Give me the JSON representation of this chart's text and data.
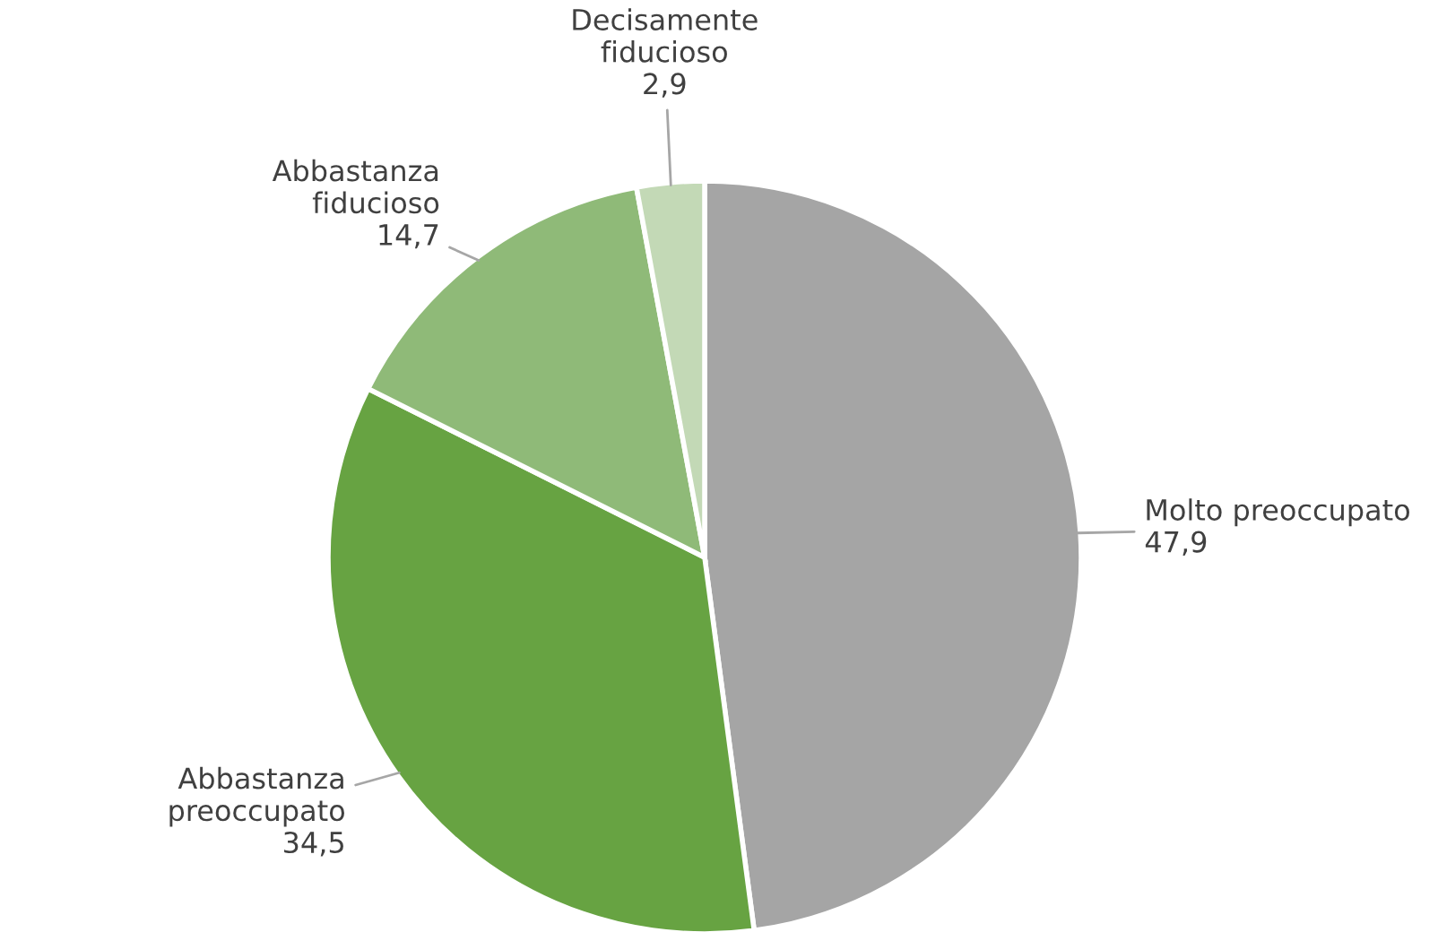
{
  "chart_data": {
    "type": "pie",
    "categories": [
      "Molto preoccupato",
      "Abbastanza\npreoccupato",
      "Abbastanza\nfiducioso",
      "Decisamente\nfiducioso"
    ],
    "values": [
      47.9,
      34.5,
      14.7,
      2.9
    ],
    "colors": [
      "#a5a5a5",
      "#67a342",
      "#8fba78",
      "#c3d9b6"
    ],
    "value_labels": [
      "47,9",
      "34,5",
      "14,7",
      "2,9"
    ],
    "legend": false
  }
}
